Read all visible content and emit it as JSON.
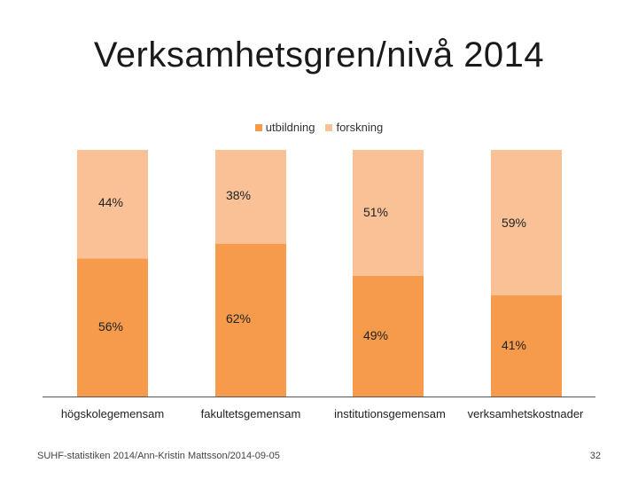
{
  "slide": {
    "title": "Verksamhetsgren/nivå 2014",
    "footer_left": "SUHF-statistiken 2014/Ann-Kristin Mattsson/2014-09-05",
    "page_number": "32"
  },
  "colors": {
    "utbildning": "#F59B4B",
    "forskning": "#F9C195",
    "axis": "#555555",
    "label": "#222222"
  },
  "chart_data": {
    "type": "bar",
    "stacked": true,
    "percent": true,
    "title": "Verksamhetsgren/nivå 2014",
    "categories": [
      "högskolegemensam",
      "fakultetsgemensam",
      "institutionsgemensam",
      "verksamhetskostnader"
    ],
    "series": [
      {
        "name": "utbildning",
        "values": [
          56,
          62,
          49,
          41
        ],
        "labels": [
          "56%",
          "62%",
          "49%",
          "41%"
        ]
      },
      {
        "name": "forskning",
        "values": [
          44,
          38,
          51,
          59
        ],
        "labels": [
          "44%",
          "38%",
          "51%",
          "59%"
        ]
      }
    ],
    "ylim": [
      0,
      100
    ],
    "legend_position": "top",
    "grid": false
  }
}
